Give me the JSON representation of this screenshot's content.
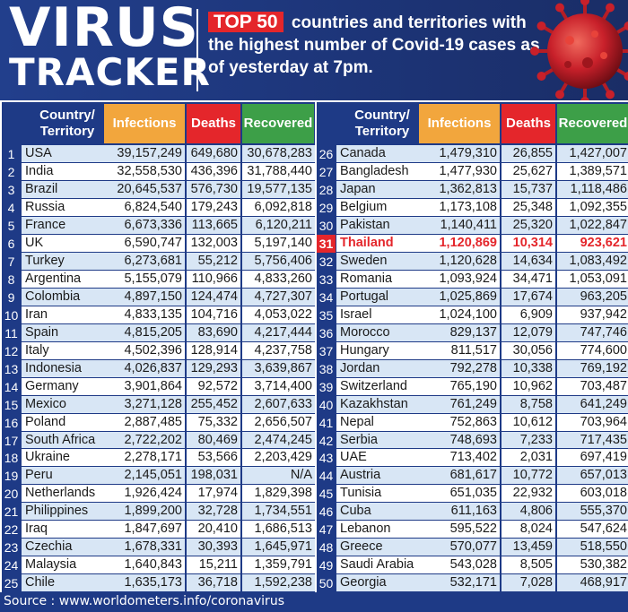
{
  "header": {
    "title_line1": "VIRUS",
    "title_line2": "TRACKER",
    "headline_badge": "TOP 50",
    "headline_text": "countries and territories with the highest number of Covid-19 cases as of yesterday at 7pm."
  },
  "columns": {
    "country": "Country/ Territory",
    "infections": "Infections",
    "deaths": "Deaths",
    "recovered": "Recovered"
  },
  "colors": {
    "header_bg": "#1f3a82",
    "infections_header": "#f2a63d",
    "deaths_header": "#e4262b",
    "recovered_header": "#3d9f48",
    "row_stripe": "#d8e6f5",
    "highlight": "#e4262b"
  },
  "icons": {
    "virus_illustration": "coronavirus-icon"
  },
  "footer": {
    "source": "Source : www.worldometers.info/coronavirus"
  },
  "chart_data": {
    "type": "table",
    "highlight_rank": 31,
    "columns": [
      "Country/Territory",
      "Infections",
      "Deaths",
      "Recovered"
    ],
    "rows": [
      {
        "rank": "1",
        "country": "USA",
        "infections": "39,157,249",
        "deaths": "649,680",
        "recovered": "30,678,283"
      },
      {
        "rank": "2",
        "country": "India",
        "infections": "32,558,530",
        "deaths": "436,396",
        "recovered": "31,788,440"
      },
      {
        "rank": "3",
        "country": "Brazil",
        "infections": "20,645,537",
        "deaths": "576,730",
        "recovered": "19,577,135"
      },
      {
        "rank": "4",
        "country": "Russia",
        "infections": "6,824,540",
        "deaths": "179,243",
        "recovered": "6,092,818"
      },
      {
        "rank": "5",
        "country": "France",
        "infections": "6,673,336",
        "deaths": "113,665",
        "recovered": "6,120,211"
      },
      {
        "rank": "6",
        "country": "UK",
        "infections": "6,590,747",
        "deaths": "132,003",
        "recovered": "5,197,140"
      },
      {
        "rank": "7",
        "country": "Turkey",
        "infections": "6,273,681",
        "deaths": "55,212",
        "recovered": "5,756,406"
      },
      {
        "rank": "8",
        "country": "Argentina",
        "infections": "5,155,079",
        "deaths": "110,966",
        "recovered": "4,833,260"
      },
      {
        "rank": "9",
        "country": "Colombia",
        "infections": "4,897,150",
        "deaths": "124,474",
        "recovered": "4,727,307"
      },
      {
        "rank": "10",
        "country": "Iran",
        "infections": "4,833,135",
        "deaths": "104,716",
        "recovered": "4,053,022"
      },
      {
        "rank": "11",
        "country": "Spain",
        "infections": "4,815,205",
        "deaths": "83,690",
        "recovered": "4,217,444"
      },
      {
        "rank": "12",
        "country": "Italy",
        "infections": "4,502,396",
        "deaths": "128,914",
        "recovered": "4,237,758"
      },
      {
        "rank": "13",
        "country": "Indonesia",
        "infections": "4,026,837",
        "deaths": "129,293",
        "recovered": "3,639,867"
      },
      {
        "rank": "14",
        "country": "Germany",
        "infections": "3,901,864",
        "deaths": "92,572",
        "recovered": "3,714,400"
      },
      {
        "rank": "15",
        "country": "Mexico",
        "infections": "3,271,128",
        "deaths": "255,452",
        "recovered": "2,607,633"
      },
      {
        "rank": "16",
        "country": "Poland",
        "infections": "2,887,485",
        "deaths": "75,332",
        "recovered": "2,656,507"
      },
      {
        "rank": "17",
        "country": "South Africa",
        "infections": "2,722,202",
        "deaths": "80,469",
        "recovered": "2,474,245"
      },
      {
        "rank": "18",
        "country": "Ukraine",
        "infections": "2,278,171",
        "deaths": "53,566",
        "recovered": "2,203,429"
      },
      {
        "rank": "19",
        "country": "Peru",
        "infections": "2,145,051",
        "deaths": "198,031",
        "recovered": "N/A"
      },
      {
        "rank": "20",
        "country": "Netherlands",
        "infections": "1,926,424",
        "deaths": "17,974",
        "recovered": "1,829,398"
      },
      {
        "rank": "21",
        "country": "Philippines",
        "infections": "1,899,200",
        "deaths": "32,728",
        "recovered": "1,734,551"
      },
      {
        "rank": "22",
        "country": "Iraq",
        "infections": "1,847,697",
        "deaths": "20,410",
        "recovered": "1,686,513"
      },
      {
        "rank": "23",
        "country": "Czechia",
        "infections": "1,678,331",
        "deaths": "30,393",
        "recovered": "1,645,971"
      },
      {
        "rank": "24",
        "country": "Malaysia",
        "infections": "1,640,843",
        "deaths": "15,211",
        "recovered": "1,359,791"
      },
      {
        "rank": "25",
        "country": "Chile",
        "infections": "1,635,173",
        "deaths": "36,718",
        "recovered": "1,592,238"
      },
      {
        "rank": "26",
        "country": "Canada",
        "infections": "1,479,310",
        "deaths": "26,855",
        "recovered": "1,427,007"
      },
      {
        "rank": "27",
        "country": "Bangladesh",
        "infections": "1,477,930",
        "deaths": "25,627",
        "recovered": "1,389,571"
      },
      {
        "rank": "28",
        "country": "Japan",
        "infections": "1,362,813",
        "deaths": "15,737",
        "recovered": "1,118,486"
      },
      {
        "rank": "29",
        "country": "Belgium",
        "infections": "1,173,108",
        "deaths": "25,348",
        "recovered": "1,092,355"
      },
      {
        "rank": "30",
        "country": "Pakistan",
        "infections": "1,140,411",
        "deaths": "25,320",
        "recovered": "1,022,847"
      },
      {
        "rank": "31",
        "country": "Thailand",
        "infections": "1,120,869",
        "deaths": "10,314",
        "recovered": "923,621"
      },
      {
        "rank": "32",
        "country": "Sweden",
        "infections": "1,120,628",
        "deaths": "14,634",
        "recovered": "1,083,492"
      },
      {
        "rank": "33",
        "country": "Romania",
        "infections": "1,093,924",
        "deaths": "34,471",
        "recovered": "1,053,091"
      },
      {
        "rank": "34",
        "country": "Portugal",
        "infections": "1,025,869",
        "deaths": "17,674",
        "recovered": "963,205"
      },
      {
        "rank": "35",
        "country": "Israel",
        "infections": "1,024,100",
        "deaths": "6,909",
        "recovered": "937,942"
      },
      {
        "rank": "36",
        "country": "Morocco",
        "infections": "829,137",
        "deaths": "12,079",
        "recovered": "747,746"
      },
      {
        "rank": "37",
        "country": "Hungary",
        "infections": "811,517",
        "deaths": "30,056",
        "recovered": "774,600"
      },
      {
        "rank": "38",
        "country": "Jordan",
        "infections": "792,278",
        "deaths": "10,338",
        "recovered": "769,192"
      },
      {
        "rank": "39",
        "country": "Switzerland",
        "infections": "765,190",
        "deaths": "10,962",
        "recovered": "703,487"
      },
      {
        "rank": "40",
        "country": "Kazakhstan",
        "infections": "761,249",
        "deaths": "8,758",
        "recovered": "641,249"
      },
      {
        "rank": "41",
        "country": "Nepal",
        "infections": "752,863",
        "deaths": "10,612",
        "recovered": "703,964"
      },
      {
        "rank": "42",
        "country": "Serbia",
        "infections": "748,693",
        "deaths": "7,233",
        "recovered": "717,435"
      },
      {
        "rank": "43",
        "country": "UAE",
        "infections": "713,402",
        "deaths": "2,031",
        "recovered": "697,419"
      },
      {
        "rank": "44",
        "country": "Austria",
        "infections": "681,617",
        "deaths": "10,772",
        "recovered": "657,013"
      },
      {
        "rank": "45",
        "country": "Tunisia",
        "infections": "651,035",
        "deaths": "22,932",
        "recovered": "603,018"
      },
      {
        "rank": "46",
        "country": "Cuba",
        "infections": "611,163",
        "deaths": "4,806",
        "recovered": "555,370"
      },
      {
        "rank": "47",
        "country": "Lebanon",
        "infections": "595,522",
        "deaths": "8,024",
        "recovered": "547,624"
      },
      {
        "rank": "48",
        "country": "Greece",
        "infections": "570,077",
        "deaths": "13,459",
        "recovered": "518,550"
      },
      {
        "rank": "49",
        "country": "Saudi Arabia",
        "infections": "543,028",
        "deaths": "8,505",
        "recovered": "530,382"
      },
      {
        "rank": "50",
        "country": "Georgia",
        "infections": "532,171",
        "deaths": "7,028",
        "recovered": "468,917"
      }
    ]
  }
}
